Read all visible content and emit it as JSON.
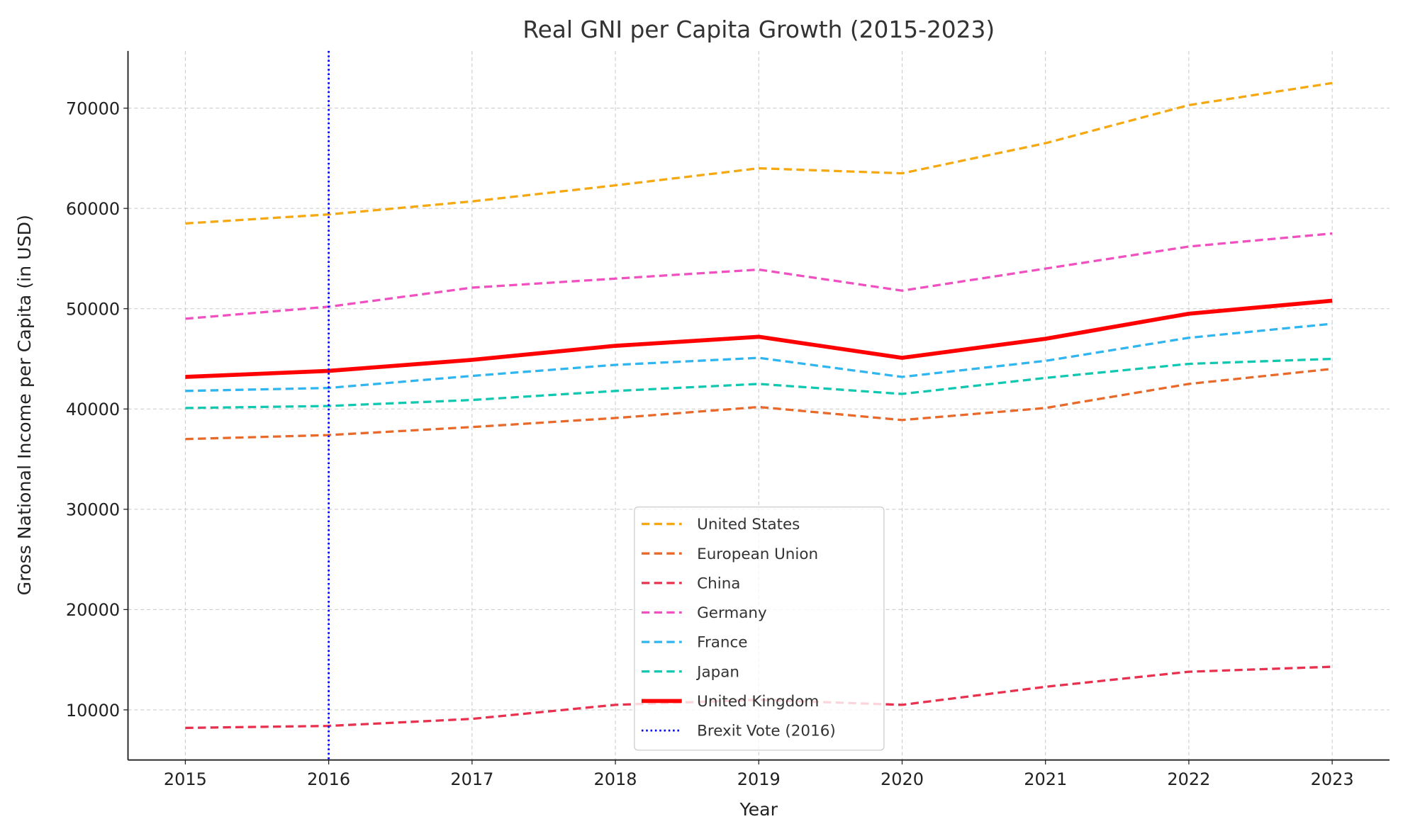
{
  "chart_data": {
    "type": "line",
    "title": "Real GNI per Capita Growth (2015-2023)",
    "xlabel": "Year",
    "ylabel": "Gross National Income per Capita (in USD)",
    "x": [
      2015,
      2016,
      2017,
      2018,
      2019,
      2020,
      2021,
      2022,
      2023
    ],
    "xlim": [
      2014.6,
      2023.4
    ],
    "ylim": [
      5000,
      75700
    ],
    "yticks": [
      10000,
      20000,
      30000,
      40000,
      50000,
      60000,
      70000
    ],
    "grid": true,
    "legend_position": "lower-center",
    "series": [
      {
        "name": "United States",
        "color": "#f5a80f",
        "style": "dashed",
        "values": [
          58500,
          59400,
          60700,
          62300,
          64000,
          63500,
          66500,
          70300,
          72500
        ]
      },
      {
        "name": "European Union",
        "color": "#e8692a",
        "style": "dashed",
        "values": [
          37000,
          37400,
          38200,
          39100,
          40200,
          38900,
          40100,
          42500,
          44000
        ]
      },
      {
        "name": "China",
        "color": "#e8304f",
        "style": "dashed",
        "values": [
          8200,
          8400,
          9100,
          10500,
          11000,
          10500,
          12300,
          13800,
          14300
        ]
      },
      {
        "name": "Germany",
        "color": "#f050c0",
        "style": "dashed",
        "values": [
          49000,
          50200,
          52100,
          53000,
          53900,
          51800,
          54000,
          56200,
          57500
        ]
      },
      {
        "name": "France",
        "color": "#2fb5f0",
        "style": "dashed",
        "values": [
          41800,
          42100,
          43300,
          44400,
          45100,
          43200,
          44800,
          47100,
          48500
        ]
      },
      {
        "name": "Japan",
        "color": "#10c8b0",
        "style": "dashed",
        "values": [
          40100,
          40300,
          40900,
          41800,
          42500,
          41500,
          43100,
          44500,
          45000
        ]
      },
      {
        "name": "United Kingdom",
        "color": "#ff0000",
        "style": "solid-thick",
        "values": [
          43200,
          43800,
          44900,
          46300,
          47200,
          45100,
          47000,
          49500,
          50800
        ]
      }
    ],
    "annotations": [
      {
        "name": "Brexit Vote (2016)",
        "type": "vline",
        "x": 2016,
        "color": "#0000ff",
        "style": "dotted"
      }
    ]
  }
}
